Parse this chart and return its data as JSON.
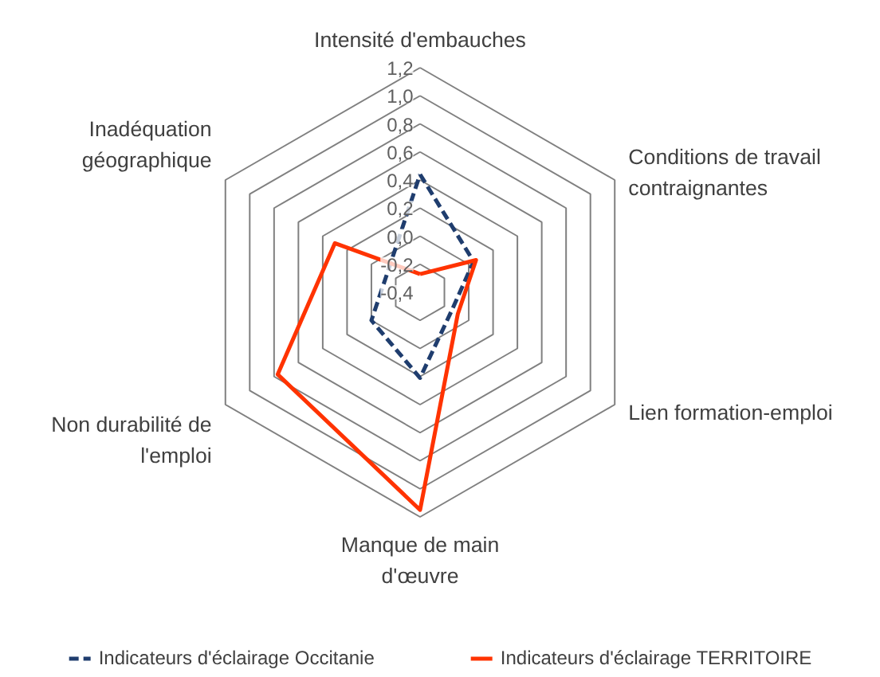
{
  "chart_data": {
    "type": "radar",
    "categories": [
      "Intensité d'embauches",
      "Conditions de travail contraignantes",
      "Lien formation-emploi",
      "Manque de main d'œuvre",
      "Non durabilité de l'emploi",
      "Inadéquation géographique"
    ],
    "series": [
      {
        "name": "Indicateurs d'éclairage Occitanie",
        "color": "#1f3d6e",
        "line_style": "dashed",
        "values": [
          0.44,
          0.04,
          -0.14,
          0.21,
          0.0,
          -0.13
        ]
      },
      {
        "name": "Indicateurs d'éclairage TERRITOIRE",
        "color": "#ff3300",
        "line_style": "solid",
        "values": [
          -0.27,
          0.06,
          -0.09,
          1.15,
          0.77,
          0.3
        ]
      }
    ],
    "ylim": [
      -0.4,
      1.2
    ],
    "yticks": [
      {
        "value": -0.4,
        "label": "-0,4"
      },
      {
        "value": -0.2,
        "label": "-0,2"
      },
      {
        "value": 0.0,
        "label": "0,0"
      },
      {
        "value": 0.2,
        "label": "0,2"
      },
      {
        "value": 0.4,
        "label": "0,4"
      },
      {
        "value": 0.6,
        "label": "0,6"
      },
      {
        "value": 0.8,
        "label": "0,8"
      },
      {
        "value": 1.0,
        "label": "1,0"
      },
      {
        "value": 1.2,
        "label": "1,2"
      }
    ],
    "grid": true,
    "legend": "bottom"
  }
}
